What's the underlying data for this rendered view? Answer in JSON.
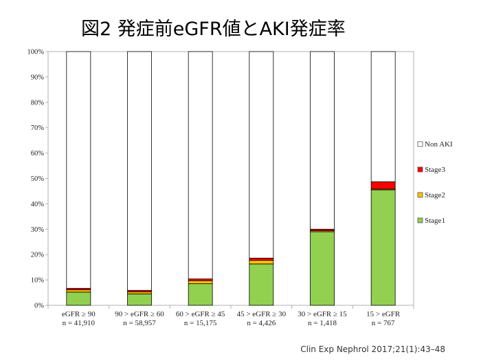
{
  "chart_data": {
    "type": "bar",
    "stacked": true,
    "title": "図2 発症前eGFR値とAKI発症率",
    "categories": [
      [
        "eGFR ≥ 90",
        "n = 41,910"
      ],
      [
        "90 > eGFR  ≥ 60",
        "n = 58,957"
      ],
      [
        "60 > eGFR  ≥ 45",
        "n = 15,175"
      ],
      [
        "45 > eGFR ≥ 30",
        "n = 4,426"
      ],
      [
        "30 > eGFR ≥ 15",
        "n = 1,418"
      ],
      [
        "15 > eGFR",
        "n = 767"
      ]
    ],
    "series": [
      {
        "name": "Stage1",
        "color": "#92d050",
        "values": [
          5.2,
          4.5,
          8.5,
          16.3,
          29.0,
          45.5
        ]
      },
      {
        "name": "Stage2",
        "color": "#ffc000",
        "values": [
          0.9,
          0.8,
          1.2,
          1.4,
          0.4,
          0.3
        ]
      },
      {
        "name": "Stage3",
        "color": "#ff0000",
        "values": [
          0.6,
          0.6,
          0.7,
          0.9,
          0.6,
          2.9
        ]
      },
      {
        "name": "Non AKI",
        "color": "#ffffff",
        "values": [
          93.3,
          94.1,
          89.6,
          81.4,
          70.0,
          51.3
        ]
      }
    ],
    "yticks": [
      "0%",
      "10%",
      "20%",
      "30%",
      "40%",
      "50%",
      "60%",
      "70%",
      "80%",
      "90%",
      "100%"
    ],
    "ylim": [
      0,
      100
    ],
    "grid": false,
    "legend_position": "right",
    "legend_order": [
      "Non AKI",
      "Stage3",
      "Stage2",
      "Stage1"
    ]
  },
  "source": "Clin Exp Nephrol 2017;21(1):43–48"
}
